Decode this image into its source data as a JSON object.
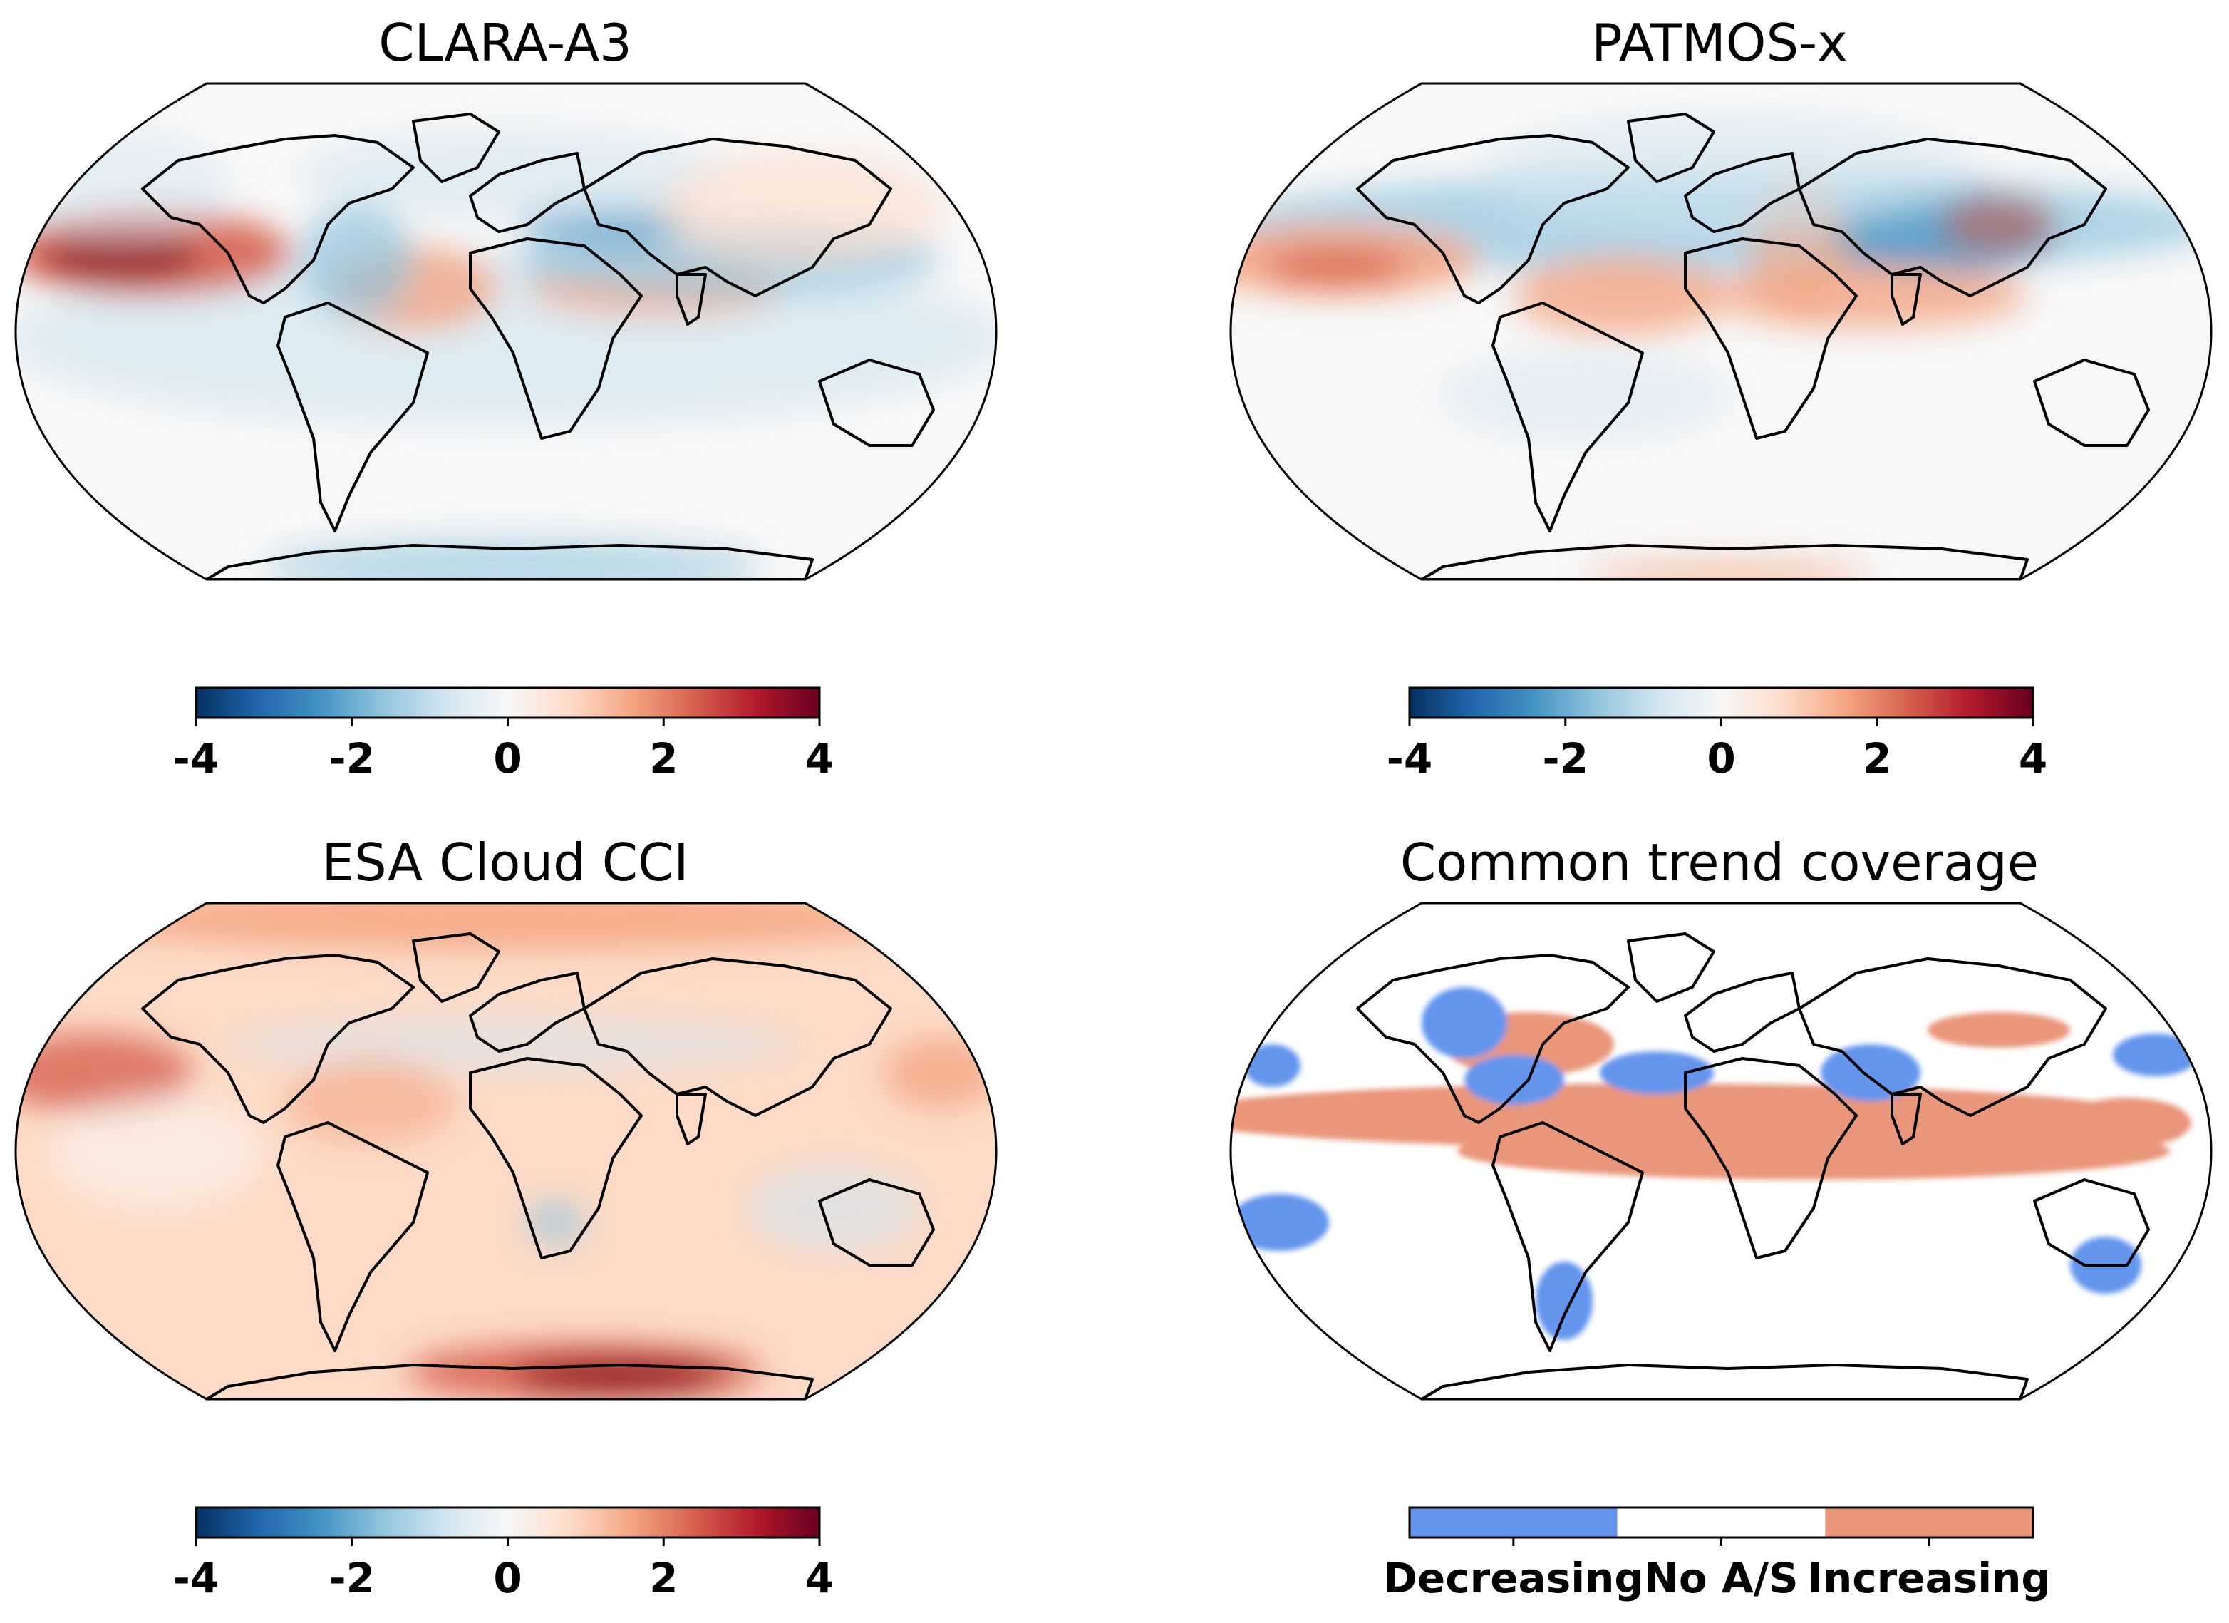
{
  "panels": [
    {
      "title": "CLARA-A3",
      "pattern": "clara"
    },
    {
      "title": "PATMOS-x",
      "pattern": "patmos"
    },
    {
      "title": "ESA Cloud CCI",
      "pattern": "esa"
    },
    {
      "title": "Common trend coverage",
      "pattern": "common"
    }
  ],
  "colorbars": [
    {
      "ticks": [
        "-4",
        "-2",
        "0",
        "2",
        "4"
      ],
      "range": [
        -4,
        4
      ],
      "colormap": "RdBu_r"
    },
    {
      "ticks": [
        "-4",
        "-2",
        "0",
        "2",
        "4"
      ],
      "range": [
        -4,
        4
      ],
      "colormap": "RdBu_r"
    },
    {
      "ticks": [
        "-4",
        "-2",
        "0",
        "2",
        "4"
      ],
      "range": [
        -4,
        4
      ],
      "colormap": "RdBu_r"
    },
    {
      "categories": [
        "Decreasing",
        "No A/S",
        "Increasing"
      ],
      "colors": [
        "#6495ED",
        "#FFFFFF",
        "#E9967A"
      ]
    }
  ],
  "colors": {
    "strong_red": "#8B0A1A",
    "mid_red": "#D6604D",
    "light_red": "#F4A582",
    "pale_red": "#FDDBC7",
    "neutral": "#F7F7F7",
    "pale_blue": "#D1E5F0",
    "light_blue": "#92C5DE",
    "mid_blue": "#4393C3",
    "strong_blue": "#053061"
  }
}
